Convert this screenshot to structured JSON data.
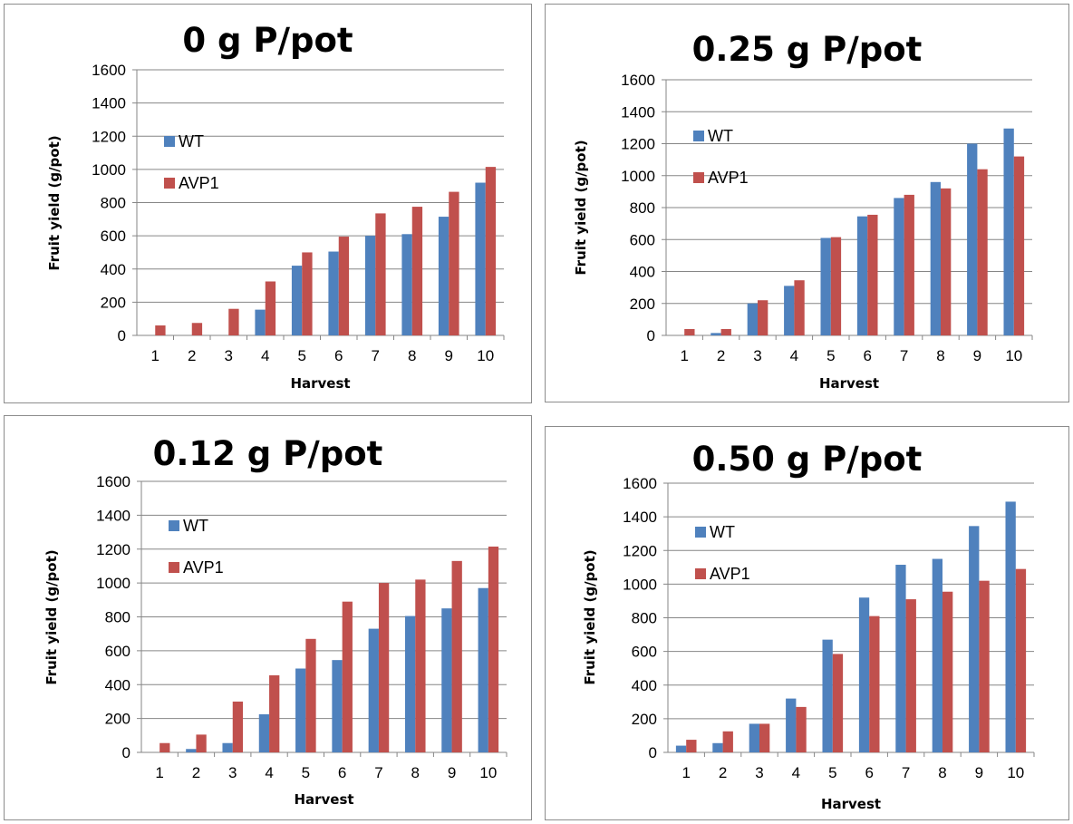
{
  "colors": {
    "WT": "#4f81bd",
    "AVP1": "#c0504d",
    "grid": "#868686",
    "axis": "#868686"
  },
  "chart_data": [
    {
      "type": "bar",
      "title": "0 g P/pot",
      "xlabel": "Harvest",
      "ylabel": "Fruit yield (g/pot)",
      "ylim": [
        0,
        1600
      ],
      "yticks": [
        "0",
        "200",
        "400",
        "600",
        "800",
        "1000",
        "1200",
        "1400",
        "1600"
      ],
      "categories": [
        "1",
        "2",
        "3",
        "4",
        "5",
        "6",
        "7",
        "8",
        "9",
        "10"
      ],
      "grid": true,
      "legend_position": "left",
      "series": [
        {
          "name": "WT",
          "values": [
            0,
            0,
            0,
            155,
            420,
            505,
            600,
            610,
            715,
            920
          ]
        },
        {
          "name": "AVP1",
          "values": [
            60,
            75,
            160,
            325,
            500,
            595,
            735,
            775,
            865,
            1015
          ]
        }
      ]
    },
    {
      "type": "bar",
      "title": "0.25 g P/pot",
      "xlabel": "Harvest",
      "ylabel": "Fruit yield (g/pot)",
      "ylim": [
        0,
        1600
      ],
      "yticks": [
        "0",
        "200",
        "400",
        "600",
        "800",
        "1000",
        "1200",
        "1400",
        "1600"
      ],
      "categories": [
        "1",
        "2",
        "3",
        "4",
        "5",
        "6",
        "7",
        "8",
        "9",
        "10"
      ],
      "grid": true,
      "legend_position": "left",
      "series": [
        {
          "name": "WT",
          "values": [
            0,
            15,
            200,
            310,
            610,
            745,
            860,
            960,
            1200,
            1295
          ]
        },
        {
          "name": "AVP1",
          "values": [
            40,
            40,
            220,
            345,
            615,
            755,
            880,
            920,
            1040,
            1120
          ]
        }
      ]
    },
    {
      "type": "bar",
      "title": "0.12 g P/pot",
      "xlabel": "Harvest",
      "ylabel": "Fruit yield (g/pot)",
      "ylim": [
        0,
        1600
      ],
      "yticks": [
        "0",
        "200",
        "400",
        "600",
        "800",
        "1000",
        "1200",
        "1400",
        "1600"
      ],
      "categories": [
        "1",
        "2",
        "3",
        "4",
        "5",
        "6",
        "7",
        "8",
        "9",
        "10"
      ],
      "grid": true,
      "legend_position": "left",
      "series": [
        {
          "name": "WT",
          "values": [
            0,
            20,
            55,
            225,
            495,
            545,
            730,
            805,
            850,
            970
          ]
        },
        {
          "name": "AVP1",
          "values": [
            55,
            105,
            300,
            455,
            670,
            890,
            1000,
            1020,
            1130,
            1215
          ]
        }
      ]
    },
    {
      "type": "bar",
      "title": "0.50 g P/pot",
      "xlabel": "Harvest",
      "ylabel": "Fruit yield (g/pot)",
      "ylim": [
        0,
        1600
      ],
      "yticks": [
        "0",
        "200",
        "400",
        "600",
        "800",
        "1000",
        "1200",
        "1400",
        "1600"
      ],
      "categories": [
        "1",
        "2",
        "3",
        "4",
        "5",
        "6",
        "7",
        "8",
        "9",
        "10"
      ],
      "grid": true,
      "legend_position": "left",
      "series": [
        {
          "name": "WT",
          "values": [
            40,
            55,
            170,
            320,
            670,
            920,
            1115,
            1150,
            1345,
            1490
          ]
        },
        {
          "name": "AVP1",
          "values": [
            75,
            125,
            170,
            270,
            585,
            810,
            910,
            955,
            1020,
            1090
          ]
        }
      ]
    }
  ]
}
